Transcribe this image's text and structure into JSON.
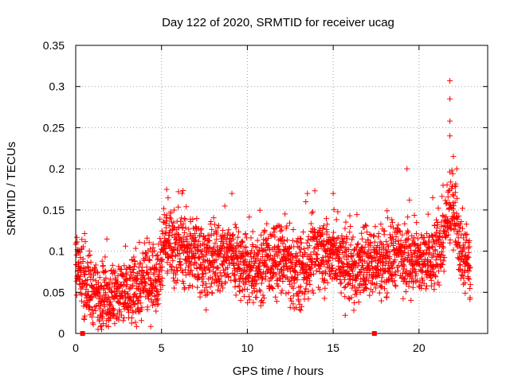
{
  "chart_data": {
    "type": "scatter",
    "title": "Day 122 of 2020, SRMTID for receiver ucag",
    "xlabel": "GPS time / hours",
    "ylabel": "SRMTID / TECUs",
    "xlim": [
      0,
      24
    ],
    "ylim": [
      0,
      0.35
    ],
    "x_ticks": [
      0,
      5,
      10,
      15,
      20
    ],
    "x_tick_labels": [
      "0",
      "5",
      "10",
      "15",
      "20"
    ],
    "y_ticks": [
      0,
      0.05,
      0.1,
      0.15,
      0.2,
      0.25,
      0.3,
      0.35
    ],
    "y_tick_labels": [
      "0",
      "0.05",
      "0.1",
      "0.15",
      "0.2",
      "0.25",
      "0.3",
      "0.35"
    ],
    "grid": true,
    "marker": "+",
    "color": "#ff0000",
    "axis_markers": [
      0.4,
      17.4
    ],
    "trend": {
      "x": [
        0,
        0.3,
        1,
        2,
        3,
        4,
        4.8,
        5.2,
        6,
        7,
        8,
        9,
        10,
        11,
        12,
        13,
        14,
        15,
        16,
        17,
        18,
        19,
        20,
        20.8,
        21.5,
        22,
        22.5,
        23
      ],
      "y": [
        0.09,
        0.07,
        0.05,
        0.045,
        0.05,
        0.06,
        0.075,
        0.115,
        0.105,
        0.095,
        0.085,
        0.1,
        0.075,
        0.085,
        0.09,
        0.07,
        0.1,
        0.095,
        0.08,
        0.085,
        0.09,
        0.1,
        0.085,
        0.09,
        0.12,
        0.16,
        0.1,
        0.08
      ]
    },
    "spread": 0.027,
    "peaks": [
      {
        "x": 5.3,
        "y": 0.175
      },
      {
        "x": 6.2,
        "y": 0.17
      },
      {
        "x": 9.1,
        "y": 0.17
      },
      {
        "x": 13.5,
        "y": 0.17
      },
      {
        "x": 15.0,
        "y": 0.17
      },
      {
        "x": 16.0,
        "y": 0.13
      },
      {
        "x": 19.3,
        "y": 0.2
      },
      {
        "x": 20.8,
        "y": 0.165
      },
      {
        "x": 21.4,
        "y": 0.18
      },
      {
        "x": 21.8,
        "y": 0.307
      },
      {
        "x": 21.8,
        "y": 0.285
      },
      {
        "x": 21.8,
        "y": 0.258
      },
      {
        "x": 21.8,
        "y": 0.24
      },
      {
        "x": 22.0,
        "y": 0.215
      },
      {
        "x": 22.2,
        "y": 0.2
      }
    ],
    "lows": [
      {
        "x": 1.3,
        "y": 0.005
      },
      {
        "x": 1.6,
        "y": 0.012
      },
      {
        "x": 2.0,
        "y": 0.018
      },
      {
        "x": 15.7,
        "y": 0.022
      },
      {
        "x": 16.2,
        "y": 0.028
      }
    ]
  }
}
